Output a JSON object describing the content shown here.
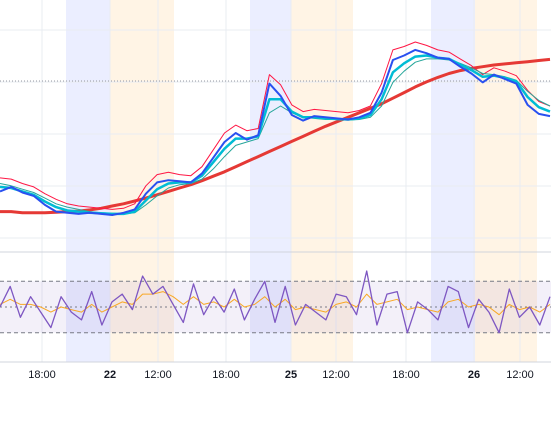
{
  "chart_data": {
    "type": "line",
    "grid": true,
    "legend": "none",
    "x_tick_labels": [
      "18:00",
      "22",
      "12:00",
      "18:00",
      "25",
      "12:00",
      "18:00",
      "26",
      "12:00"
    ],
    "x_tick_bold": [
      false,
      true,
      false,
      false,
      true,
      false,
      false,
      true,
      false
    ],
    "session_bands": [
      {
        "color": "#3d5afe",
        "kind": "blue"
      },
      {
        "color": "#ff9800",
        "kind": "orange"
      },
      {
        "color": "#3d5afe",
        "kind": "blue"
      },
      {
        "color": "#ff9800",
        "kind": "orange"
      },
      {
        "color": "#3d5afe",
        "kind": "blue"
      },
      {
        "color": "#ff9800",
        "kind": "orange"
      }
    ],
    "price_panel": {
      "series": [
        {
          "key": "price",
          "color": "#2950f0",
          "values": [
            5.2,
            5.6,
            5.1,
            4.8,
            4.0,
            3.4,
            3.3,
            3.2,
            3.3,
            3.2,
            3.1,
            3.3,
            3.6,
            5.0,
            6.0,
            6.2,
            6.1,
            6.0,
            6.8,
            8.2,
            9.6,
            10.4,
            9.8,
            10.2,
            14.8,
            13.7,
            12.0,
            11.5,
            11.9,
            11.8,
            11.7,
            11.6,
            11.8,
            12.2,
            14.0,
            16.9,
            17.3,
            17.8,
            17.5,
            17.1,
            17.0,
            16.3,
            15.7,
            14.9,
            15.6,
            15.2,
            14.8,
            12.9,
            12.1,
            11.9
          ]
        },
        {
          "key": "ema_fast",
          "color": "#00bcd4",
          "values": [
            5.6,
            5.5,
            5.2,
            4.9,
            4.3,
            3.8,
            3.5,
            3.4,
            3.3,
            3.25,
            3.2,
            3.2,
            3.4,
            4.4,
            5.4,
            5.9,
            6.0,
            6.0,
            6.6,
            7.8,
            9.0,
            9.9,
            9.9,
            10.1,
            13.4,
            13.4,
            12.3,
            11.8,
            11.8,
            11.7,
            11.65,
            11.6,
            11.7,
            12.0,
            13.4,
            15.8,
            16.6,
            17.2,
            17.3,
            17.1,
            17.0,
            16.5,
            16.0,
            15.4,
            15.5,
            15.3,
            15.0,
            13.6,
            12.7,
            12.3
          ]
        },
        {
          "key": "ema_mid",
          "color": "#26a69a",
          "values": [
            5.9,
            5.7,
            5.4,
            5.1,
            4.6,
            4.1,
            3.8,
            3.6,
            3.4,
            3.3,
            3.25,
            3.2,
            3.3,
            4.0,
            4.8,
            5.5,
            5.8,
            5.9,
            6.3,
            7.2,
            8.3,
            9.3,
            9.6,
            9.9,
            12.2,
            12.8,
            12.2,
            11.8,
            11.7,
            11.6,
            11.6,
            11.55,
            11.6,
            11.8,
            12.8,
            14.9,
            15.9,
            16.7,
            17.0,
            17.0,
            16.9,
            16.6,
            16.2,
            15.7,
            15.6,
            15.4,
            15.1,
            14.1,
            13.3,
            12.8
          ]
        },
        {
          "key": "upper_band",
          "color": "#ff1744",
          "values": [
            6.4,
            6.3,
            5.9,
            5.6,
            5.0,
            4.5,
            4.1,
            3.9,
            3.8,
            3.7,
            3.6,
            3.7,
            4.1,
            5.7,
            6.7,
            6.9,
            6.7,
            6.6,
            7.4,
            8.9,
            10.4,
            11.1,
            10.6,
            10.8,
            15.6,
            14.7,
            12.9,
            12.3,
            12.5,
            12.4,
            12.3,
            12.2,
            12.4,
            12.8,
            14.8,
            17.8,
            18.1,
            18.5,
            18.2,
            17.8,
            17.6,
            17.0,
            16.4,
            15.6,
            16.2,
            15.9,
            15.5,
            14.2,
            13.2,
            12.8
          ]
        },
        {
          "key": "ma_long",
          "color": "#e53935",
          "values": [
            3.4,
            3.4,
            3.3,
            3.3,
            3.3,
            3.35,
            3.4,
            3.45,
            3.55,
            3.7,
            3.9,
            4.1,
            4.35,
            4.6,
            4.9,
            5.2,
            5.5,
            5.8,
            6.15,
            6.55,
            6.95,
            7.4,
            7.85,
            8.3,
            8.75,
            9.2,
            9.65,
            10.1,
            10.55,
            11.0,
            11.4,
            11.8,
            12.2,
            12.6,
            13.0,
            13.5,
            14.0,
            14.5,
            14.95,
            15.35,
            15.7,
            15.95,
            16.15,
            16.3,
            16.45,
            16.55,
            16.65,
            16.75,
            16.85,
            16.95
          ]
        }
      ]
    },
    "oscillator_panel": {
      "levels": [
        70,
        50,
        30
      ],
      "series": [
        {
          "key": "oscillator",
          "color": "#7e57c2",
          "values": [
            50,
            66,
            42,
            58,
            46,
            34,
            58,
            46,
            40,
            62,
            36,
            54,
            60,
            48,
            74,
            60,
            66,
            52,
            38,
            68,
            44,
            58,
            46,
            64,
            40,
            56,
            70,
            38,
            66,
            36,
            52,
            46,
            40,
            60,
            58,
            44,
            78,
            36,
            60,
            62,
            30,
            54,
            48,
            40,
            66,
            62,
            34,
            56,
            46,
            30,
            64,
            42,
            50,
            36,
            58
          ]
        },
        {
          "key": "oscillator_ma",
          "color": "#f9a825",
          "values": [
            52,
            56,
            52,
            52,
            50,
            46,
            50,
            48,
            46,
            52,
            46,
            50,
            54,
            52,
            60,
            60,
            62,
            58,
            52,
            58,
            52,
            54,
            50,
            56,
            50,
            52,
            58,
            50,
            56,
            48,
            50,
            48,
            46,
            52,
            54,
            50,
            60,
            52,
            54,
            56,
            48,
            50,
            48,
            46,
            54,
            56,
            50,
            52,
            50,
            44,
            52,
            48,
            50,
            46,
            52
          ]
        }
      ]
    }
  }
}
